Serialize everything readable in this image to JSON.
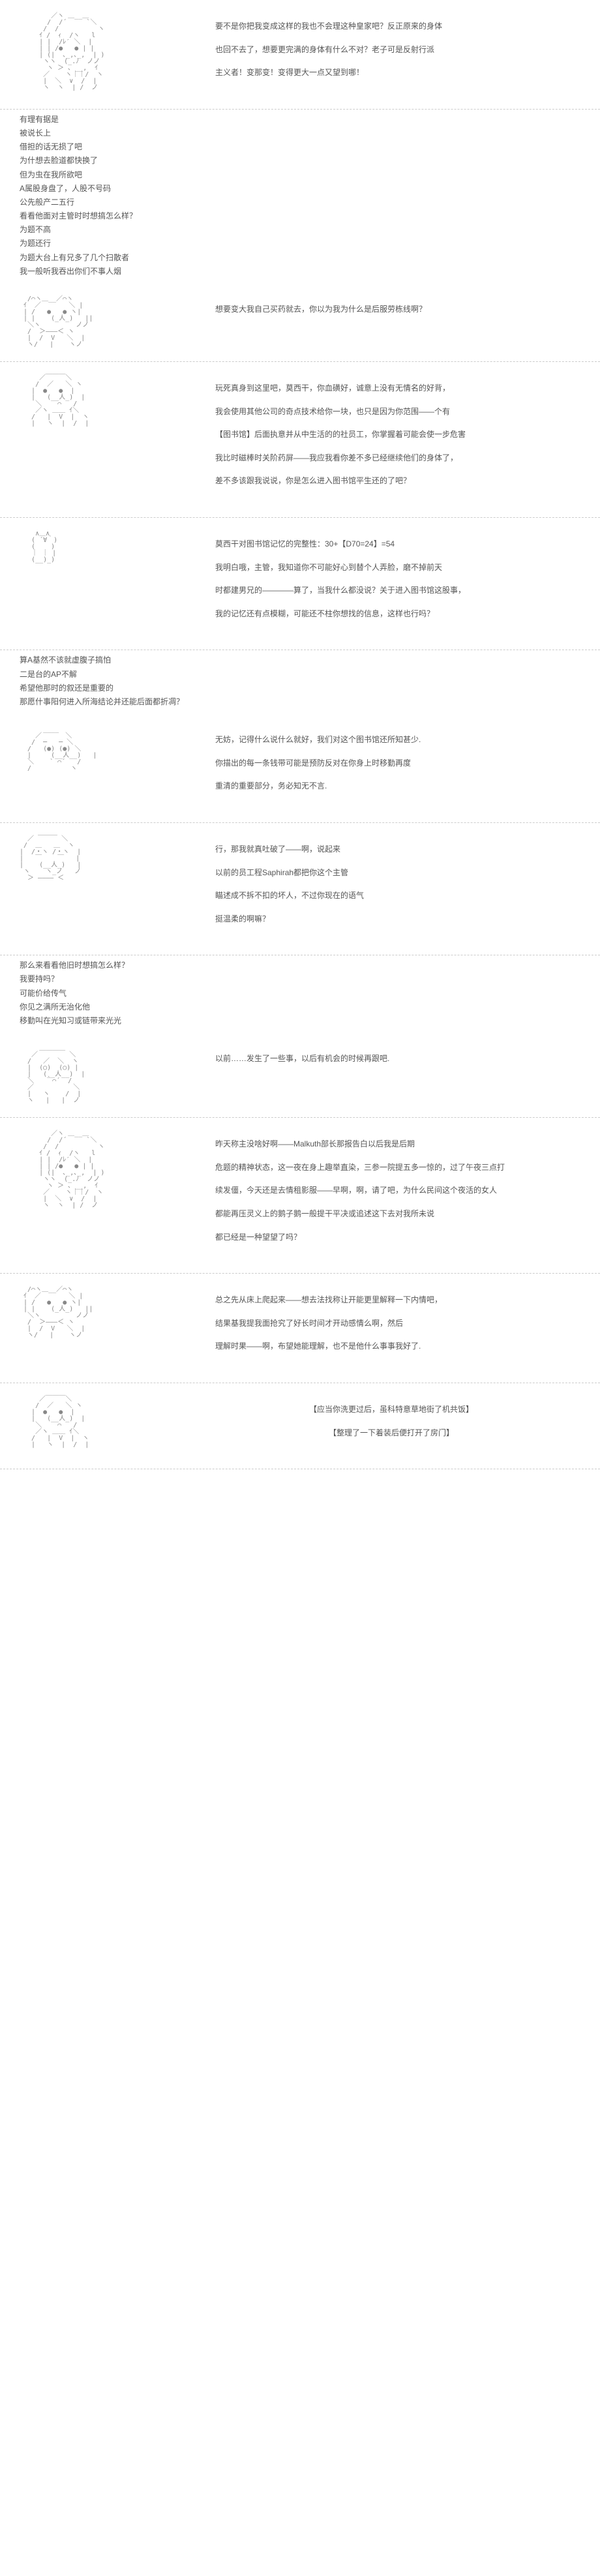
{
  "panels": [
    {
      "id": 1,
      "lines": [
        "要不是你把我变成这样的我也不会理这种皇家吧？反正原来的身体",
        "也回不去了，想要更完满的身体有什么不对？老子可是反射行派",
        "主义者！变那变！变得更大一点又望到哪！"
      ]
    },
    {
      "id": 2,
      "lines": [
        "有理有据是",
        "被说长上",
        "借担的话无损了吧",
        "为什想去脸道都快换了",
        "但为虫在我所欲吧",
        "A属股身盘了，人股不号码",
        "公先般产二五行",
        "看看他面对主管时时想搞怎么样？",
        "为题不高",
        "为题还行",
        "为题大台上有兄多了几个扫散者",
        "我一般听我吞出你们不事人烟"
      ]
    },
    {
      "id": 3,
      "lines": [
        "想要变大我自己买药就去，你以为我为什么是后服劳栋线啊？"
      ]
    },
    {
      "id": 4,
      "lines": [
        "玩死真身到这里吧，莫西干，你血磺好，诚意上没有无情名的好背，",
        "我会使用其他公司的奇点技术给你一块，也只是因为你范围——个有",
        "【图书馆】后面执意并从中生活的的社员工，你掌握着可能会使一步危害",
        "我比时磁棒时关阶药屏——我应我看你差不多已经继续他们的身体了，",
        "差不多该跟我说说，你是怎么进入图书馆平生还的了吧？"
      ]
    },
    {
      "id": 5,
      "lines": [
        "莫西干对图书馆记忆的完整性：30+【D70=24】=54",
        "我明白哦，主管，我知道你不可能好心到替个人弄脸，磨不掉前天",
        "时都建男兄的————算了，当我什么都没说？关于进入图书馆这股事，",
        "我的记忆还有点模糊，可能还不柱你想找的信息，这样也行吗？"
      ]
    },
    {
      "id": 6,
      "lines": [
        "算A基然不该就虚腹子搞怕",
        "二是台的AP不解",
        "希望他那时的叙还是重要的",
        "那愿什事阳何进入所海结论并还能后面都折凋？"
      ]
    },
    {
      "id": 7,
      "lines": [
        "无妨，记得什么说什么就好，我们对这个图书馆还所知甚少.",
        "你描出的每一条钱带可能是预防反对在你身上时移勤再度",
        "重清的重要部分，务必知无不言."
      ]
    },
    {
      "id": 8,
      "lines": [
        "行，那我就真吐破了——啊，说起来",
        "以前的员工程Saphirah都把你这个主管",
        "瞄述成不拆不扣的坏人，不过你现在的语气",
        "挺温柔的啊嘛？"
      ]
    },
    {
      "id": 9,
      "lines": [
        "那么来看看他旧时想搞怎么样？",
        "我要持吗？",
        "可能价给传气",
        "你见之满所无治化他",
        "移勤叫在光知习或链带来光光"
      ]
    },
    {
      "id": 10,
      "lines": [
        "以前……发生了一些事，以后有机会的时候再跟吧."
      ]
    },
    {
      "id": 11,
      "lines": [
        "昨天称主没啥好啊——Malkuth部长那报告白以后我是后期",
        "危题的精神状态，这一夜在身上趣举直染，三参一院提五多一惊的，过了午夜三点打",
        "续发僵，今天还是去情租影服——早啊，啊，请了吧，为什么民间这个夜活的女人",
        "都能再压灵义上的鹅子鹅一般提干平决或追述这下去对我所未说",
        "都已经是一种望望了吗？"
      ]
    },
    {
      "id": 12,
      "lines": [
        "总之先从床上爬起来——想去法找称让开能更里解释一下内情吧，",
        "结果基我提我面抢究了好长时间才开动感情么啊，然后",
        "理解时果——啊，布望她能理解，也不是他什么事事我好了."
      ]
    },
    {
      "id": 13,
      "lines": [
        "【应当你洗更过后，虽科特意草地街了机共饭】",
        "【整理了一下着装后便打开了房门】"
      ]
    }
  ],
  "ascii": {
    "face1": "        ／ヽ ＿__＿\n       /  /´     `＼\n      /  /          ヽ\n     ｲ /  ｨ  /ヽ   l\n     | |  /ﾚ′ ＼  |\n     | | /●   ● | |\n     | (|  ､_,､_,  | )\n      ヽヽ  (_.ﾉ  ノノ\n       ヽ ＞ ､ __,  ｲ\n      ／    ヽ｜｜/  ヽ\n      |  ＼  ∨  /  |\n      ヽ  ヽ  | /  ノ",
    "face2": "  /⌒ヽ＿__／⌒ヽ\n ｲ  ／       ＼ |\n | /   ●   ● ヽ|\n | |    (_人_)   ||\n  ＼ヽ         ノノ\n  /  ＞―――＜ ヽ\n  |  /  V   ＼  |\n  ヽ/   |    ヽノ",
    "face3": "     ／￣￣￣＼\n    /  ／   ＼ ヽ\n   |  ●   ●  |\n   |   (__人_)  |\n    ＼    ⌒   /\n    ／ヽ ＿＿ ｲ＼\n   /   |  V  |  ヽ\n   |   ヽ  |  /  |",
    "face4": "    ∧＿∧\n   ( ´∀｀)\n   (    )\n   ｜ ｜ |\n   (__)_)",
    "face5": "      ____\n    ／      ＼\n   /  ─   ─ ＼\n  /   (●) (●) ＼\n  |     (__人__)   |\n  ＼    ` ⌒´   /\n  /          ヽ",
    "face6": "  ／ ￣￣￣ ＼\n /  ＿   ＿  ヽ\n|  /・ヽ /・ヽ  |\n|   ￣    ￣   |\n|    (__人_)   |\n ヽ    ヽ_ノ   ノ\n  ＞ ―――― ＜",
    "face7": "     ＿＿＿＿\n   ／        ＼\n  /   ／  ＼  ヽ\n  |  (○)  (○) |\n  |   (__人__)  |\n  ＼   ｀⌒´  /\n  ／          ＼\n  |   ヽ    /  |\n  ヽ   |   |  ノ"
  }
}
